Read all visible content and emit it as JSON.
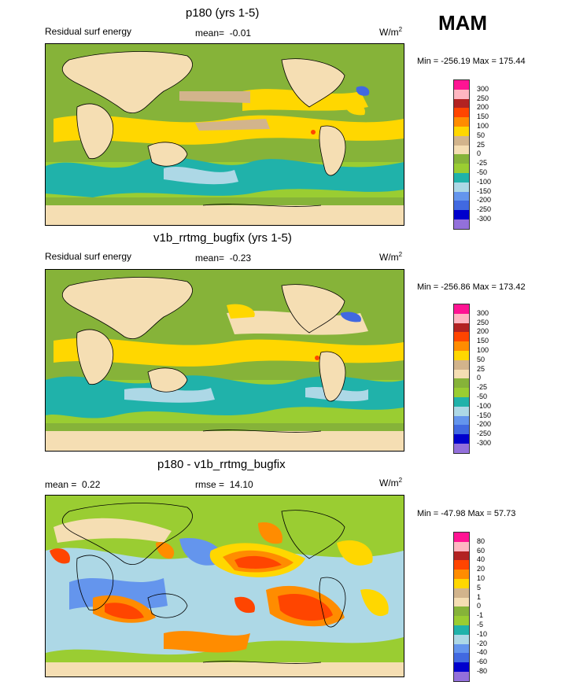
{
  "season": "MAM",
  "panels": [
    {
      "title": "p180 (yrs 1-5)",
      "variable": "Residual surf energy",
      "mean_label": "mean=",
      "mean": "-0.01",
      "unit": "W/m",
      "unit_exp": "2",
      "min_max": "Min = -256.19 Max = 175.44",
      "colorbar": {
        "labels": [
          "300",
          "250",
          "200",
          "150",
          "100",
          "50",
          "25",
          "0",
          "-25",
          "-50",
          "-100",
          "-150",
          "-200",
          "-250",
          "-300"
        ],
        "colors": [
          "#ff1493",
          "#ffb6c1",
          "#b22222",
          "#ff4500",
          "#ff8c00",
          "#ffd700",
          "#d2b48c",
          "#f5deb3",
          "#86b339",
          "#9acd32",
          "#20b2aa",
          "#add8e6",
          "#6495ed",
          "#4169e1",
          "#0000cd",
          "#9370db"
        ]
      }
    },
    {
      "title": "v1b_rrtmg_bugfix (yrs 1-5)",
      "variable": "Residual surf energy",
      "mean_label": "mean=",
      "mean": "-0.23",
      "unit": "W/m",
      "unit_exp": "2",
      "min_max": "Min = -256.86 Max = 173.42",
      "colorbar": {
        "labels": [
          "300",
          "250",
          "200",
          "150",
          "100",
          "50",
          "25",
          "0",
          "-25",
          "-50",
          "-100",
          "-150",
          "-200",
          "-250",
          "-300"
        ],
        "colors": [
          "#ff1493",
          "#ffb6c1",
          "#b22222",
          "#ff4500",
          "#ff8c00",
          "#ffd700",
          "#d2b48c",
          "#f5deb3",
          "#86b339",
          "#9acd32",
          "#20b2aa",
          "#add8e6",
          "#6495ed",
          "#4169e1",
          "#0000cd",
          "#9370db"
        ]
      }
    },
    {
      "title": "p180 - v1b_rrtmg_bugfix",
      "mean_label": "mean =",
      "mean": "0.22",
      "rmse_label": "rmse =",
      "rmse": "14.10",
      "unit": "W/m",
      "unit_exp": "2",
      "min_max": "Min = -47.98 Max =  57.73",
      "colorbar": {
        "labels": [
          "80",
          "60",
          "40",
          "20",
          "10",
          "5",
          "1",
          "0",
          "-1",
          "-5",
          "-10",
          "-20",
          "-40",
          "-60",
          "-80"
        ],
        "colors": [
          "#ff1493",
          "#ffb6c1",
          "#b22222",
          "#ff4500",
          "#ff8c00",
          "#ffd700",
          "#d2b48c",
          "#f5deb3",
          "#86b339",
          "#9acd32",
          "#20b2aa",
          "#add8e6",
          "#6495ed",
          "#4169e1",
          "#0000cd",
          "#9370db"
        ]
      }
    }
  ]
}
